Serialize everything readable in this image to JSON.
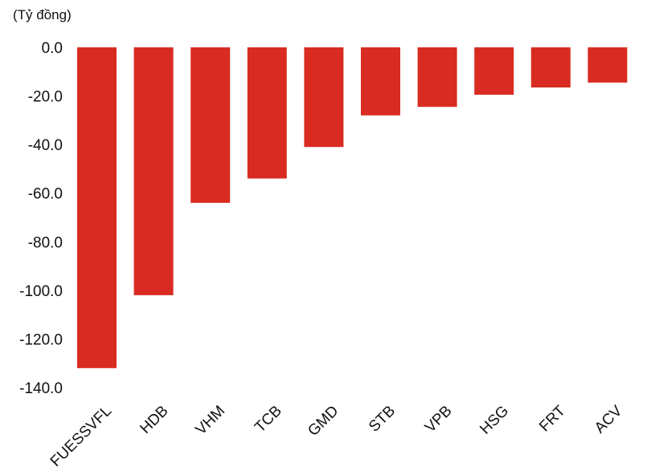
{
  "chart_data": {
    "type": "bar",
    "unit_label": "(Tỷ đồng)",
    "categories": [
      "FUESSVFL",
      "HDB",
      "VHM",
      "TCB",
      "GMD",
      "STB",
      "VPB",
      "HSG",
      "FRT",
      "ACV"
    ],
    "values": [
      -132.0,
      -102.0,
      -64.0,
      -54.0,
      -41.0,
      -28.0,
      -24.5,
      -19.5,
      -16.5,
      -14.5
    ],
    "ylim": [
      -140,
      0
    ],
    "yticks": [
      "0.0",
      "-20.0",
      "-40.0",
      "-60.0",
      "-80.0",
      "-100.0",
      "-120.0",
      "-140.0"
    ],
    "ytick_values": [
      0,
      -20,
      -40,
      -60,
      -80,
      -100,
      -120,
      -140
    ],
    "grid": false,
    "bar_color": "#d92b21"
  }
}
